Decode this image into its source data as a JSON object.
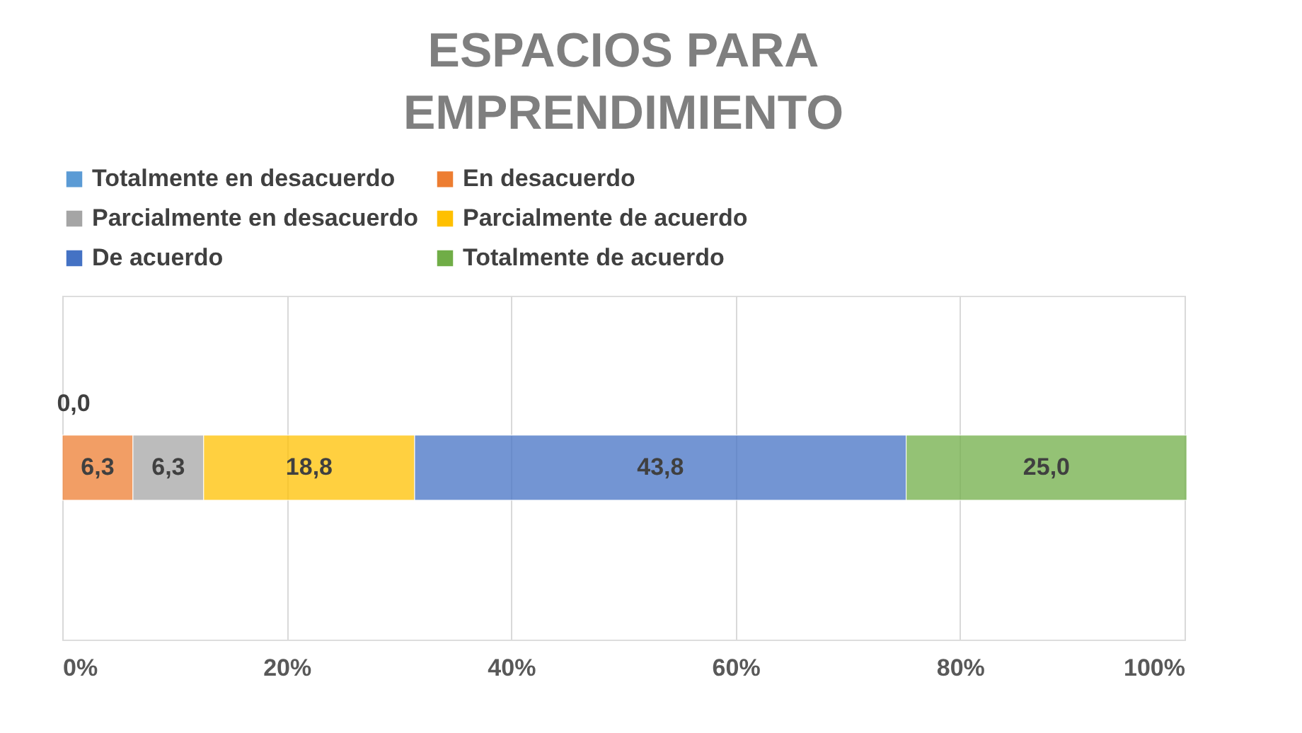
{
  "chart_data": {
    "type": "bar",
    "orientation": "horizontal",
    "stacked": true,
    "title": "ESPACIOS PARA EMPRENDIMIENTO",
    "categories": [
      null
    ],
    "series": [
      {
        "name": "Totalmente en desacuerdo",
        "color": "#5b9bd5",
        "values": [
          0.0
        ]
      },
      {
        "name": "En desacuerdo",
        "color": "#ed7d31",
        "values": [
          6.3
        ]
      },
      {
        "name": "Parcialmente en desacuerdo",
        "color": "#a5a5a5",
        "values": [
          6.3
        ]
      },
      {
        "name": "Parcialmente de acuerdo",
        "color": "#ffc000",
        "values": [
          18.8
        ]
      },
      {
        "name": "De acuerdo",
        "color": "#4472c4",
        "values": [
          43.8
        ]
      },
      {
        "name": "Totalmente de acuerdo",
        "color": "#70ad47",
        "values": [
          25.0
        ]
      }
    ],
    "value_labels": [
      "0,0",
      "6,3",
      "6,3",
      "18,8",
      "43,8",
      "25,0"
    ],
    "xlim": [
      0,
      100
    ],
    "xticks": [
      {
        "value": 0,
        "label": "0%"
      },
      {
        "value": 20,
        "label": "20%"
      },
      {
        "value": 40,
        "label": "40%"
      },
      {
        "value": 60,
        "label": "60%"
      },
      {
        "value": 80,
        "label": "80%"
      },
      {
        "value": 100,
        "label": "100%"
      }
    ],
    "grid": "x",
    "legend": "top",
    "tick_labels": "x"
  }
}
